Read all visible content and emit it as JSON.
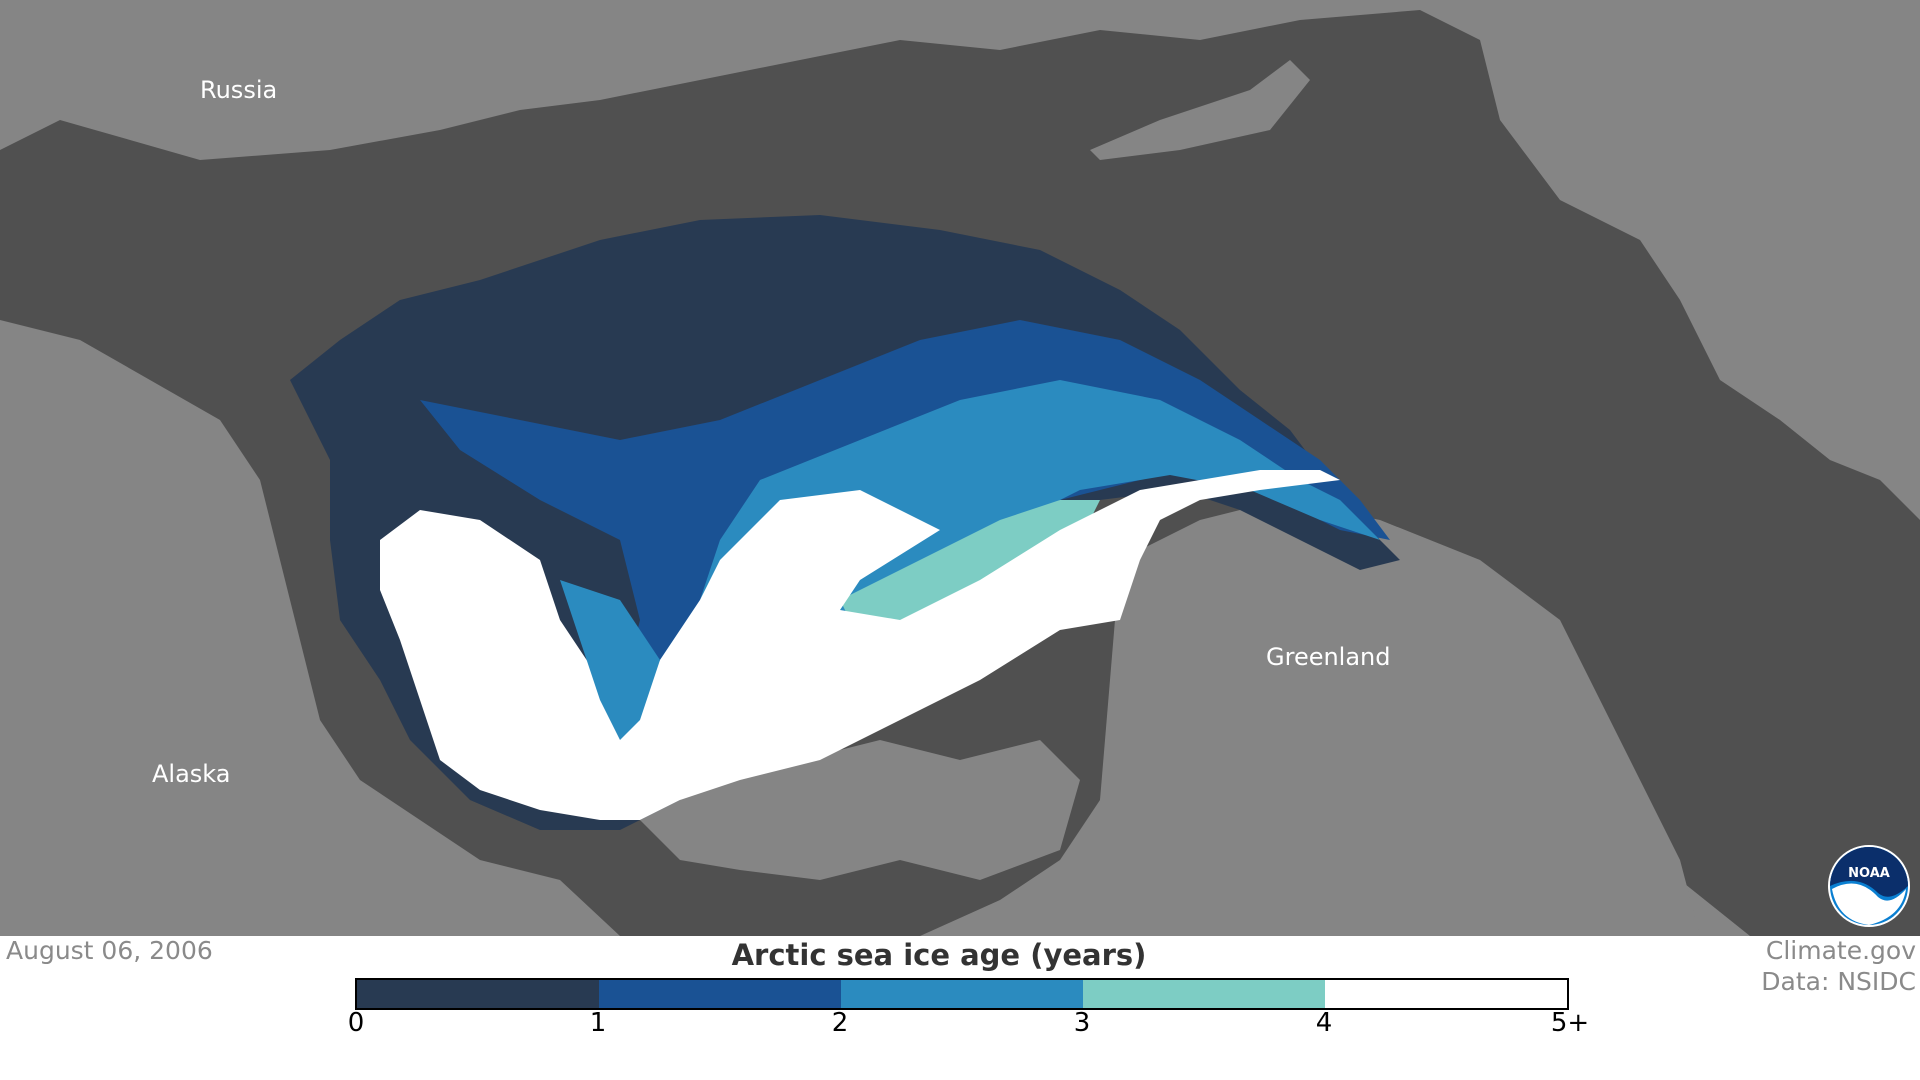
{
  "map": {
    "labels": {
      "russia": "Russia",
      "alaska": "Alaska",
      "greenland": "Greenland"
    },
    "colors": {
      "land": "#858585",
      "ocean": "#505050"
    },
    "logo": "NOAA"
  },
  "footer": {
    "date": "August 06, 2006",
    "credit_site": "Climate.gov",
    "credit_data": "Data: NSIDC"
  },
  "legend": {
    "title": "Arctic sea ice age (years)",
    "ticks": [
      "0",
      "1",
      "2",
      "3",
      "4",
      "5+"
    ],
    "colors": [
      "#283a52",
      "#1a5294",
      "#2b8bbf",
      "#7dcdc4",
      "#ffffff"
    ]
  }
}
